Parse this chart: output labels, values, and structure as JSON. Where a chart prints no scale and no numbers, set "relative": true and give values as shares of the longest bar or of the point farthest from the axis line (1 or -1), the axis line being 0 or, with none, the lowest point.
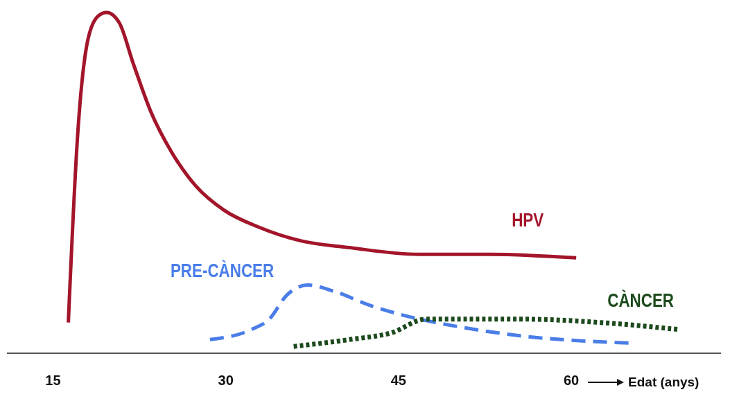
{
  "chart_data": {
    "type": "line",
    "relative": true,
    "xlabel": "Edat (anys)",
    "xlim": [
      11,
      73
    ],
    "xticks": [
      15,
      30,
      45,
      60
    ],
    "series": [
      {
        "name": "HPV",
        "color": "#a3152a",
        "line_style": "solid",
        "x": [
          16.33,
          17.12,
          18.03,
          18.94,
          19.66,
          20.75,
          21.97,
          23.48,
          25.3,
          27.42,
          29.84,
          32.87,
          36.5,
          40.74,
          46.8,
          52.86,
          60.43
        ],
        "values": [
          0.09,
          0.63,
          0.92,
          0.99,
          1,
          0.97,
          0.85,
          0.71,
          0.59,
          0.49,
          0.42,
          0.37,
          0.33,
          0.31,
          0.29,
          0.29,
          0.28
        ]
      },
      {
        "name": "PRE-CÀNCER",
        "color": "#4a7de8",
        "line_style": "dashed",
        "x": [
          28.63,
          32.26,
          33.78,
          35.29,
          37.11,
          39.53,
          42.56,
          45.59,
          49.83,
          55.88,
          64.97
        ],
        "values": [
          0.04,
          0.07,
          0.1,
          0.17,
          0.2,
          0.18,
          0.14,
          0.11,
          0.08,
          0.05,
          0.03
        ]
      },
      {
        "name": "CÀNCER",
        "color": "#1c4a1c",
        "line_style": "dotted",
        "x": [
          35.9,
          40.74,
          44.38,
          47.4,
          49.83,
          55.88,
          62.55,
          69.21
        ],
        "values": [
          0.02,
          0.04,
          0.06,
          0.1,
          0.1,
          0.1,
          0.09,
          0.07
        ]
      }
    ]
  }
}
